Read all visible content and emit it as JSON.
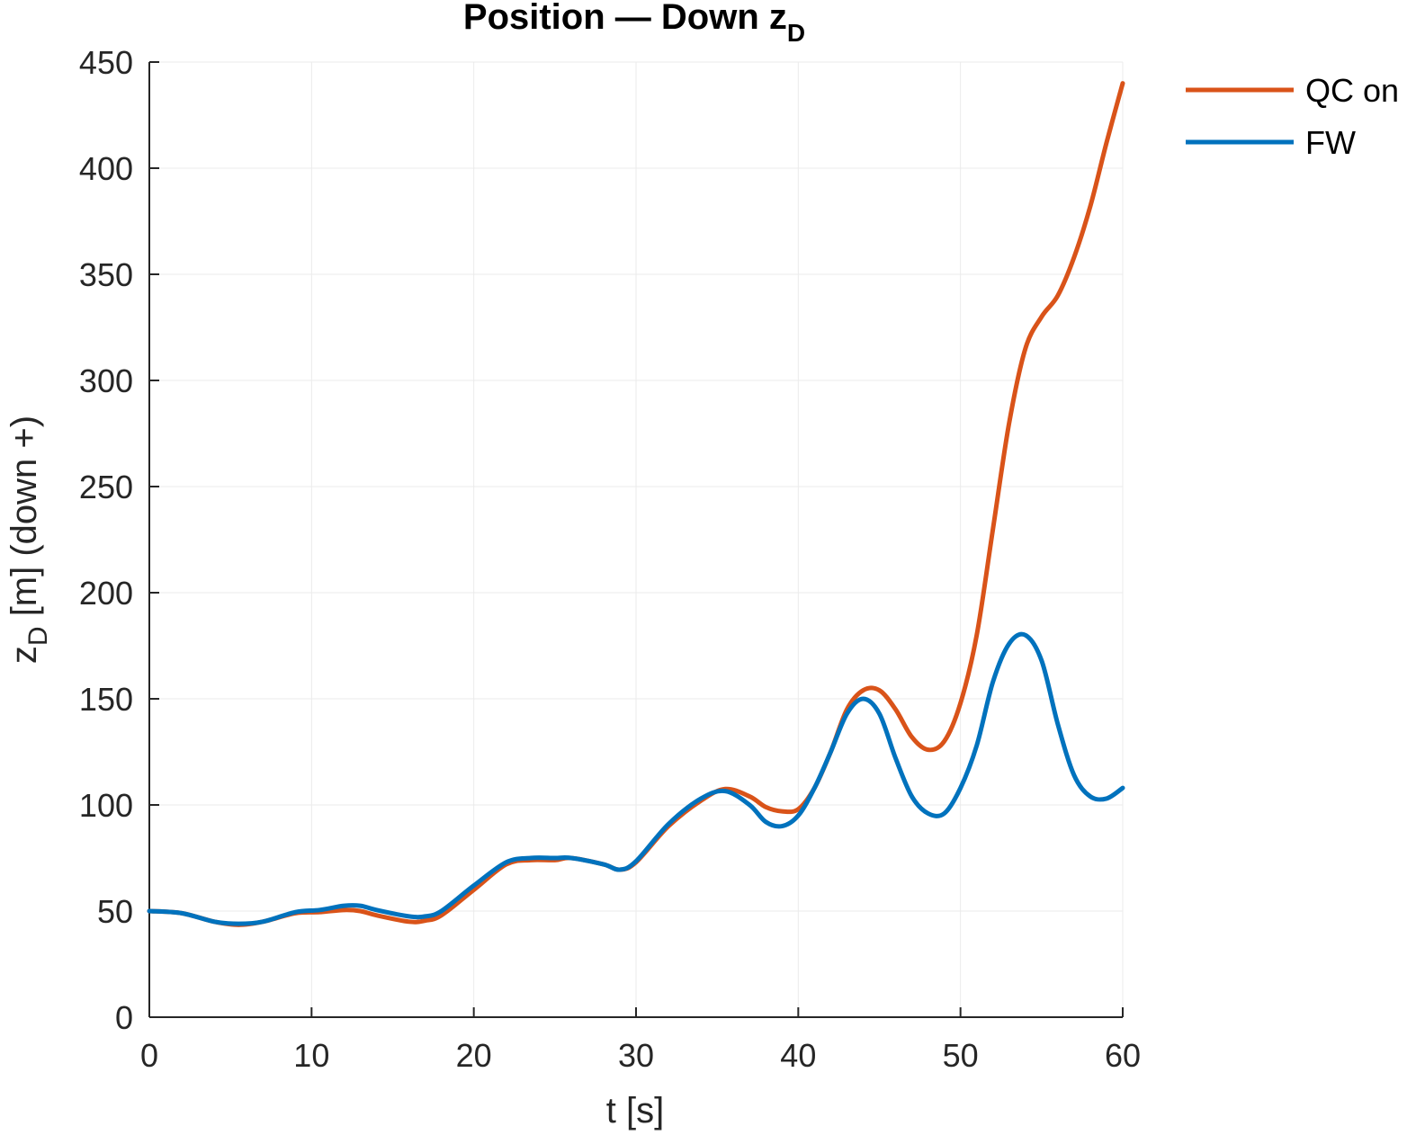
{
  "chart_data": {
    "type": "line",
    "title": {
      "main": "Position — Down z",
      "sub": "D"
    },
    "xlabel": "t [s]",
    "ylabel": {
      "main": "z",
      "sub": "D",
      "rest": " [m] (down +)"
    },
    "xlim": [
      0,
      60
    ],
    "ylim": [
      0,
      450
    ],
    "xticks": [
      0,
      10,
      20,
      30,
      40,
      50,
      60
    ],
    "yticks": [
      0,
      50,
      100,
      150,
      200,
      250,
      300,
      350,
      400,
      450
    ],
    "grid": true,
    "legend_position": "top-right, outside plot area",
    "series": [
      {
        "name": "QC on",
        "color": "#D95319",
        "x": [
          0,
          2,
          4,
          5.5,
          7,
          9,
          10.5,
          12,
          13,
          14,
          16,
          17,
          18,
          20,
          22,
          23.5,
          25,
          26,
          28,
          29,
          30,
          32,
          34,
          35.5,
          37,
          38,
          39,
          40,
          41,
          42,
          43,
          44,
          45,
          46,
          47,
          48,
          49,
          50,
          51,
          52,
          53,
          54,
          55,
          56,
          57,
          58,
          59,
          60
        ],
        "y": [
          50,
          49,
          45,
          43.5,
          45,
          49,
          49.5,
          50.5,
          50,
          48,
          45,
          45.5,
          48,
          60,
          72,
          74,
          74,
          75,
          72,
          69.5,
          73,
          90,
          102,
          107.5,
          104,
          99,
          97,
          98,
          108,
          125,
          145,
          154,
          154,
          145,
          132,
          126,
          130,
          148,
          180,
          230,
          280,
          315,
          330,
          340,
          358,
          382,
          412,
          440
        ]
      },
      {
        "name": "FW",
        "color": "#0072BD",
        "x": [
          0,
          2,
          4,
          5.5,
          7,
          9,
          10.5,
          12,
          13,
          14,
          16,
          17,
          18,
          20,
          22,
          23.5,
          25,
          26,
          28,
          29,
          30,
          32,
          34,
          35.5,
          37,
          38,
          39,
          40,
          41,
          42,
          43,
          44,
          45,
          46,
          47,
          48,
          49,
          50,
          51,
          52,
          53,
          54,
          55,
          56,
          57,
          58,
          59,
          60
        ],
        "y": [
          50,
          49,
          45,
          44,
          45,
          49.5,
          50.5,
          52.5,
          52.5,
          50.5,
          47.5,
          47.5,
          50,
          62,
          73,
          75,
          75,
          75,
          72,
          69.5,
          73.5,
          91,
          103,
          106.5,
          100,
          92,
          90,
          95,
          108,
          125,
          143,
          150,
          143,
          122,
          104,
          96,
          96,
          108,
          128,
          158,
          176,
          180,
          168,
          138,
          114,
          104,
          103,
          108
        ]
      }
    ]
  }
}
